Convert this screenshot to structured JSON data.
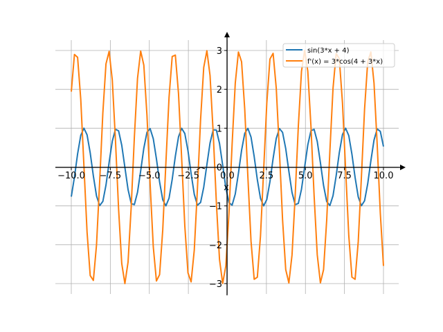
{
  "chart_data": {
    "type": "line",
    "title": "",
    "xlabel": "x",
    "ylabel": "",
    "xlim": [
      -10,
      10
    ],
    "ylim": [
      -3,
      3
    ],
    "grid": true,
    "legend_position": "top-right",
    "x_ticks": [
      -10.0,
      -7.5,
      -5.0,
      -2.5,
      0.0,
      2.5,
      5.0,
      7.5,
      10.0
    ],
    "x_tick_labels": [
      "−10.0",
      "−7.5",
      "−5.0",
      "−2.5",
      "0.0",
      "2.5",
      "5.0",
      "7.5",
      "10.0"
    ],
    "y_ticks": [
      -3,
      -2,
      -1,
      0,
      1,
      2,
      3
    ],
    "y_tick_labels": [
      "−3",
      "−2",
      "−1",
      "0",
      "1",
      "2",
      "3"
    ],
    "sample_count": 100,
    "series": [
      {
        "name": "sin(3*x + 4)",
        "expression": "sin(3*x + 4)",
        "color": "#1f77b4"
      },
      {
        "name": "f'(x) = 3*cos(4 + 3*x)",
        "expression": "3*cos(4 + 3*x)",
        "color": "#ff7f0e"
      }
    ]
  }
}
